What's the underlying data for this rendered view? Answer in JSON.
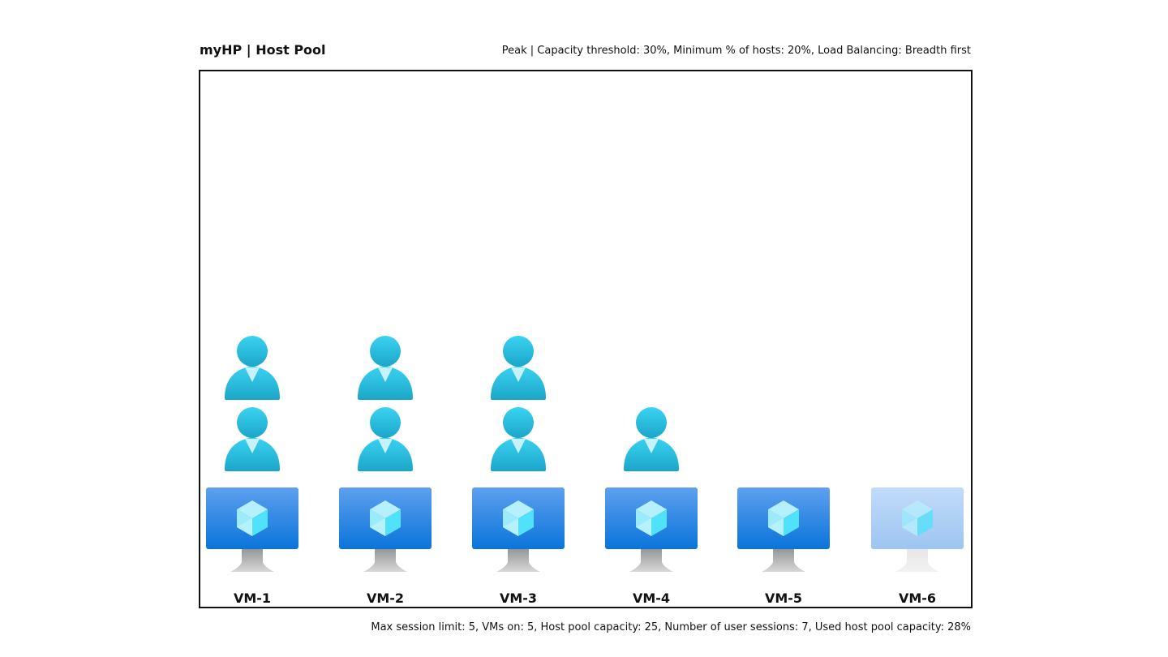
{
  "header": {
    "title": "myHP | Host Pool",
    "config": "Peak | Capacity threshold: 30%, Minimum % of hosts: 20%, Load Balancing: Breadth first"
  },
  "vms": [
    {
      "label": "VM-1",
      "sessions": 2,
      "on": true
    },
    {
      "label": "VM-2",
      "sessions": 2,
      "on": true
    },
    {
      "label": "VM-3",
      "sessions": 2,
      "on": true
    },
    {
      "label": "VM-4",
      "sessions": 1,
      "on": true
    },
    {
      "label": "VM-5",
      "sessions": 0,
      "on": true
    },
    {
      "label": "VM-6",
      "sessions": 0,
      "on": false
    }
  ],
  "icons": {
    "session": "user-icon",
    "vm": "virtual-machine-monitor-icon"
  },
  "colors": {
    "user": "#32C4E8",
    "vm_on": "#1E82E0",
    "vm_off": "#A9CDF6"
  },
  "footer": {
    "summary": "Max session limit: 5, VMs on: 5, Host pool capacity: 25, Number of user sessions: 7, Used host pool capacity: 28%"
  }
}
